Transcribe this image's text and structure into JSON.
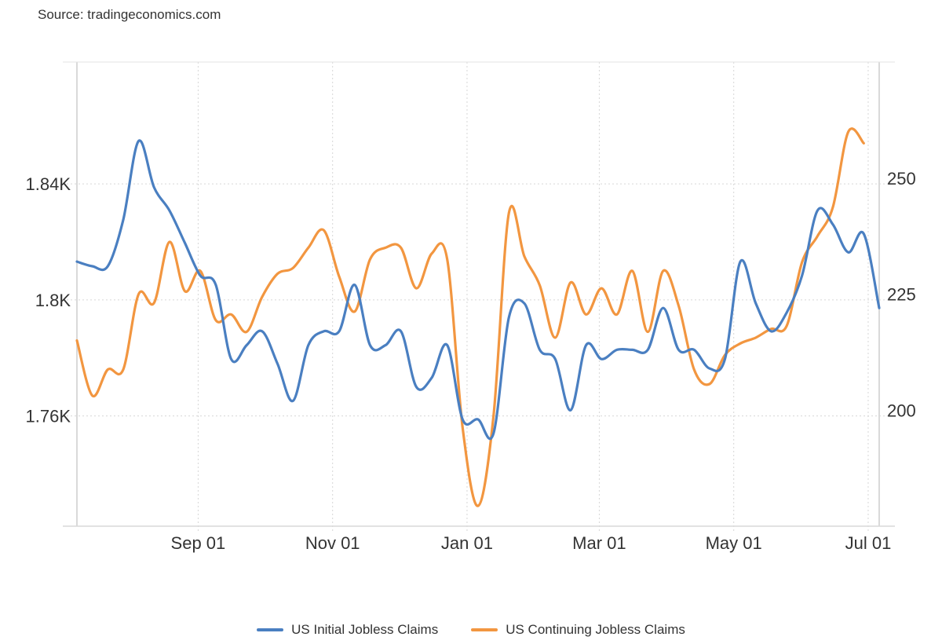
{
  "source": "Source: tradingeconomics.com",
  "chart_data": {
    "type": "line",
    "title": "",
    "xlabel": "",
    "ylabel": "",
    "x_ticks": [
      "Sep 01",
      "Nov 01",
      "Jan 01",
      "Mar 01",
      "May 01",
      "Jul 01"
    ],
    "x_tick_dates": [
      "2023-09-01",
      "2023-11-01",
      "2024-01-01",
      "2024-03-01",
      "2024-05-01",
      "2024-07-01"
    ],
    "xlim": [
      "2023-07-08",
      "2024-07-06"
    ],
    "y_left": {
      "ticks": [
        "1.76K",
        "1.8K",
        "1.84K"
      ],
      "tick_values": [
        1760,
        1800,
        1840
      ],
      "range": [
        1722,
        1882
      ]
    },
    "y_right": {
      "ticks": [
        "200",
        "225",
        "250"
      ],
      "tick_values": [
        200,
        225,
        250
      ],
      "range": [
        175,
        275
      ]
    },
    "grid": true,
    "legend_position": "bottom-center",
    "series": [
      {
        "name": "US Continuing Jobless Claims",
        "axis": "left",
        "color": "#f29640",
        "points": [
          [
            "2023-07-08",
            1786
          ],
          [
            "2023-07-15",
            1767
          ],
          [
            "2023-07-22",
            1776
          ],
          [
            "2023-07-29",
            1776
          ],
          [
            "2023-08-05",
            1802
          ],
          [
            "2023-08-12",
            1799
          ],
          [
            "2023-08-19",
            1820
          ],
          [
            "2023-08-26",
            1803
          ],
          [
            "2023-09-02",
            1810
          ],
          [
            "2023-09-09",
            1793
          ],
          [
            "2023-09-16",
            1795
          ],
          [
            "2023-09-23",
            1789
          ],
          [
            "2023-09-30",
            1801
          ],
          [
            "2023-10-07",
            1809
          ],
          [
            "2023-10-14",
            1811
          ],
          [
            "2023-10-21",
            1818
          ],
          [
            "2023-10-28",
            1824
          ],
          [
            "2023-11-04",
            1808
          ],
          [
            "2023-11-11",
            1796
          ],
          [
            "2023-11-18",
            1814
          ],
          [
            "2023-11-25",
            1818
          ],
          [
            "2023-12-02",
            1818
          ],
          [
            "2023-12-09",
            1804
          ],
          [
            "2023-12-16",
            1816
          ],
          [
            "2023-12-23",
            1814
          ],
          [
            "2023-12-30",
            1756
          ],
          [
            "2024-01-06",
            1729
          ],
          [
            "2024-01-13",
            1760
          ],
          [
            "2024-01-20",
            1830
          ],
          [
            "2024-01-27",
            1815
          ],
          [
            "2024-02-03",
            1805
          ],
          [
            "2024-02-10",
            1787
          ],
          [
            "2024-02-17",
            1806
          ],
          [
            "2024-02-24",
            1795
          ],
          [
            "2024-03-02",
            1804
          ],
          [
            "2024-03-09",
            1795
          ],
          [
            "2024-03-16",
            1810
          ],
          [
            "2024-03-23",
            1789
          ],
          [
            "2024-03-30",
            1810
          ],
          [
            "2024-04-06",
            1798
          ],
          [
            "2024-04-13",
            1776
          ],
          [
            "2024-04-20",
            1771
          ],
          [
            "2024-04-27",
            1781
          ],
          [
            "2024-05-04",
            1785
          ],
          [
            "2024-05-11",
            1787
          ],
          [
            "2024-05-18",
            1790
          ],
          [
            "2024-05-25",
            1791
          ],
          [
            "2024-06-01",
            1813
          ],
          [
            "2024-06-08",
            1822
          ],
          [
            "2024-06-15",
            1832
          ],
          [
            "2024-06-22",
            1858
          ],
          [
            "2024-06-29",
            1854
          ]
        ]
      },
      {
        "name": "US Initial Jobless Claims",
        "axis": "right",
        "color": "#4a7fc1",
        "points": [
          [
            "2023-07-08",
            232
          ],
          [
            "2023-07-15",
            231
          ],
          [
            "2023-07-22",
            231
          ],
          [
            "2023-07-29",
            241
          ],
          [
            "2023-08-05",
            258
          ],
          [
            "2023-08-12",
            248
          ],
          [
            "2023-08-19",
            243
          ],
          [
            "2023-08-26",
            236
          ],
          [
            "2023-09-02",
            229
          ],
          [
            "2023-09-09",
            227
          ],
          [
            "2023-09-16",
            211
          ],
          [
            "2023-09-23",
            214
          ],
          [
            "2023-09-30",
            217
          ],
          [
            "2023-10-07",
            210
          ],
          [
            "2023-10-14",
            202
          ],
          [
            "2023-10-21",
            214
          ],
          [
            "2023-10-28",
            217
          ],
          [
            "2023-11-04",
            217
          ],
          [
            "2023-11-11",
            227
          ],
          [
            "2023-11-18",
            214
          ],
          [
            "2023-11-25",
            214
          ],
          [
            "2023-12-02",
            217
          ],
          [
            "2023-12-09",
            205
          ],
          [
            "2023-12-16",
            207
          ],
          [
            "2023-12-23",
            214
          ],
          [
            "2023-12-30",
            198
          ],
          [
            "2024-01-06",
            198
          ],
          [
            "2024-01-13",
            195
          ],
          [
            "2024-01-20",
            220
          ],
          [
            "2024-01-27",
            223
          ],
          [
            "2024-02-03",
            213
          ],
          [
            "2024-02-10",
            211
          ],
          [
            "2024-02-17",
            200
          ],
          [
            "2024-02-24",
            214
          ],
          [
            "2024-03-02",
            211
          ],
          [
            "2024-03-09",
            213
          ],
          [
            "2024-03-16",
            213
          ],
          [
            "2024-03-23",
            213
          ],
          [
            "2024-03-30",
            222
          ],
          [
            "2024-04-06",
            213
          ],
          [
            "2024-04-13",
            213
          ],
          [
            "2024-04-20",
            209
          ],
          [
            "2024-04-27",
            211
          ],
          [
            "2024-05-04",
            232
          ],
          [
            "2024-05-11",
            223
          ],
          [
            "2024-05-18",
            217
          ],
          [
            "2024-05-25",
            221
          ],
          [
            "2024-06-01",
            229
          ],
          [
            "2024-06-08",
            243
          ],
          [
            "2024-06-15",
            240
          ],
          [
            "2024-06-22",
            234
          ],
          [
            "2024-06-29",
            238
          ],
          [
            "2024-07-06",
            222
          ]
        ]
      }
    ]
  }
}
